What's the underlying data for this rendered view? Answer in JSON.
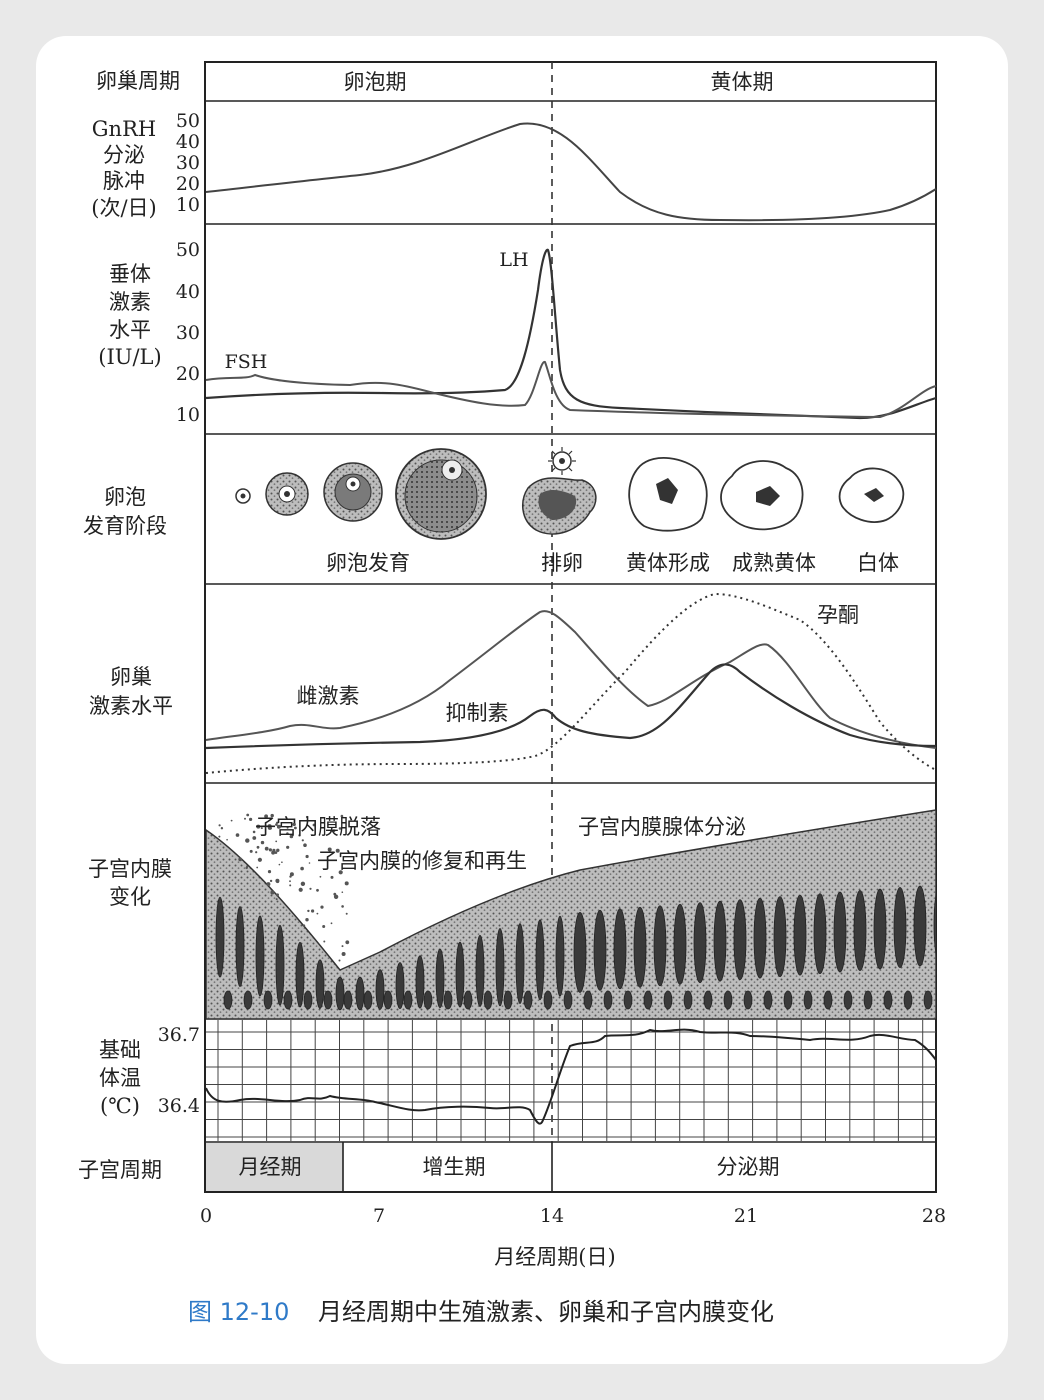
{
  "rows": {
    "ovarian_cycle": "卵巢周期",
    "gnrh": [
      "GnRH",
      "分泌",
      "脉冲",
      "(次/日)"
    ],
    "pituitary": [
      "垂体",
      "激素",
      "水平",
      "(IU/L)"
    ],
    "follicle_stage": [
      "卵泡",
      "发育阶段"
    ],
    "ovarian_hormone": [
      "卵巢",
      "激素水平"
    ],
    "endometrium": [
      "子宫内膜",
      "变化"
    ],
    "bbt": [
      "基础",
      "体温",
      "(℃)"
    ],
    "uterine_cycle": "子宫周期"
  },
  "phases": {
    "follicular": "卵泡期",
    "luteal": "黄体期",
    "menstrual": "月经期",
    "proliferative": "增生期",
    "secretory": "分泌期"
  },
  "gnrh_ticks": [
    "50",
    "40",
    "30",
    "20",
    "10"
  ],
  "pituitary_ticks": [
    "50",
    "40",
    "30",
    "20",
    "10"
  ],
  "bbt_ticks": [
    "36.7",
    "36.4"
  ],
  "hormone_labels": {
    "lh": "LH",
    "fsh": "FSH",
    "estrogen": "雌激素",
    "inhibin": "抑制素",
    "progesterone": "孕酮"
  },
  "follicle_labels": {
    "development": "卵泡发育",
    "ovulation": "排卵",
    "corpus_formation": "黄体形成",
    "mature_corpus": "成熟黄体",
    "albicans": "白体"
  },
  "endometrium_labels": {
    "shedding": "子宫内膜脱落",
    "repair": "子宫内膜的修复和再生",
    "secretion": "子宫内膜腺体分泌"
  },
  "x_ticks": [
    "0",
    "7",
    "14",
    "21",
    "28"
  ],
  "x_axis_title": "月经周期(日)",
  "caption": {
    "number": "图 12-10",
    "text": "月经周期中生殖激素、卵巢和子宫内膜变化"
  },
  "colors": {
    "caption_number": "#2f7ac8",
    "menstrual_fill": "#d9d9d9"
  }
}
